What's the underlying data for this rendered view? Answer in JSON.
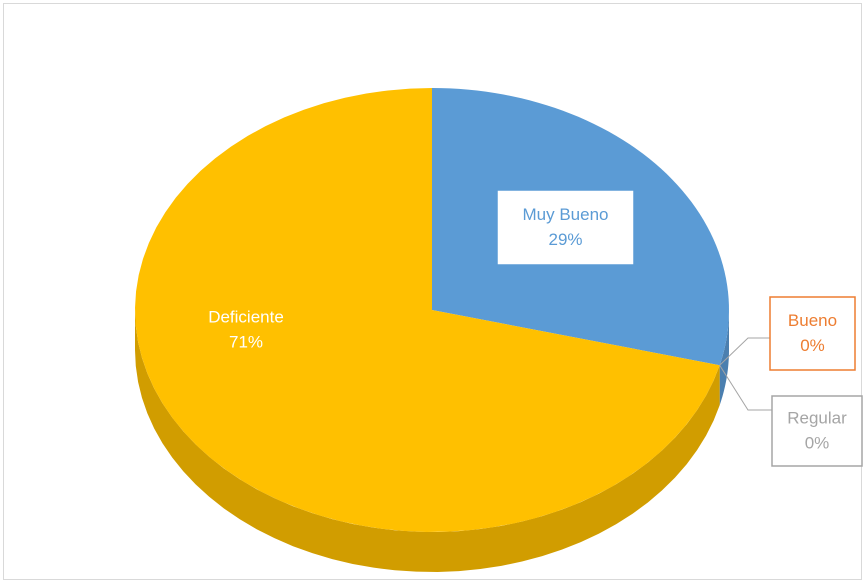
{
  "chart_data": {
    "type": "pie",
    "categories": [
      "Muy Bueno",
      "Bueno",
      "Regular",
      "Deficiente"
    ],
    "values": [
      29,
      0,
      0,
      71
    ],
    "value_labels": [
      "29%",
      "0%",
      "0%",
      "71%"
    ],
    "colors": [
      "#5b9bd5",
      "#ed7d31",
      "#a5a5a5",
      "#ffc000"
    ],
    "style": "3d"
  }
}
